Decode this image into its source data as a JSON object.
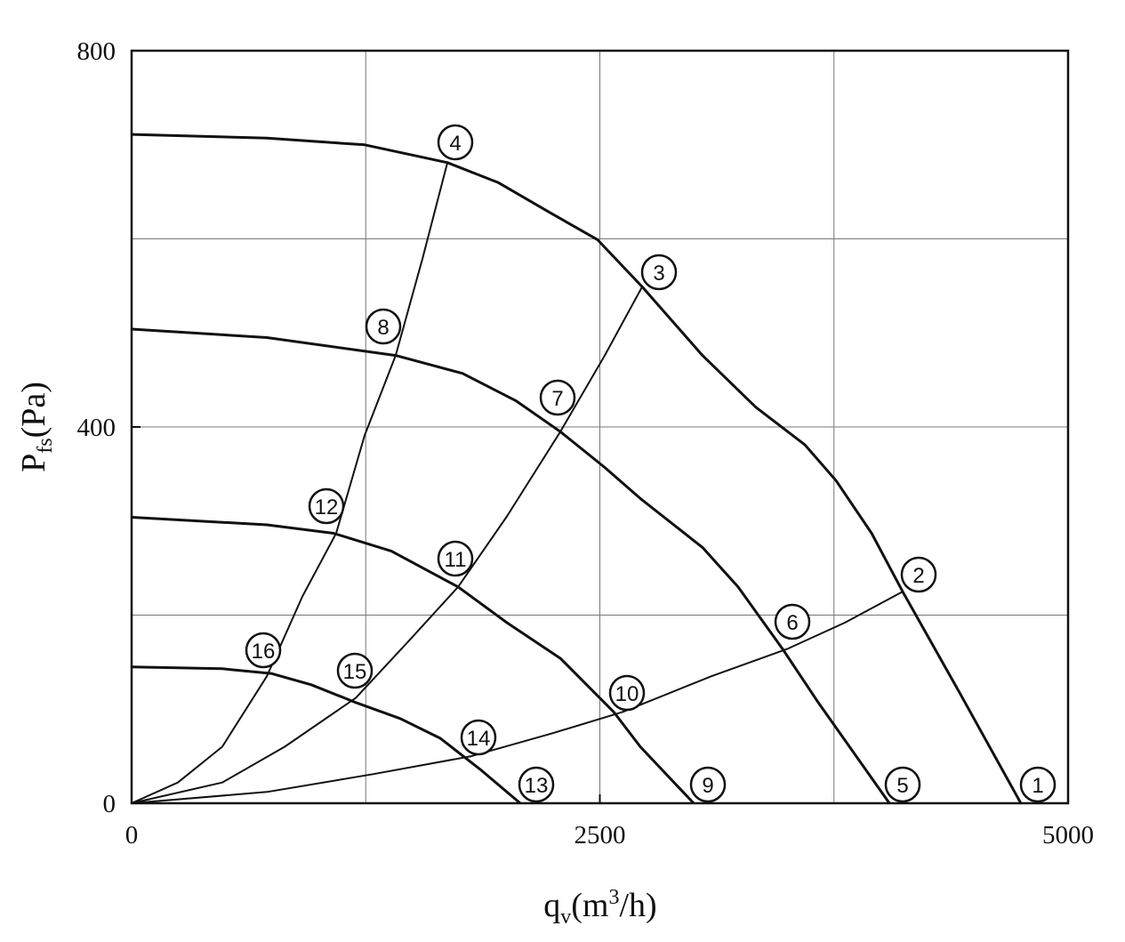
{
  "chart_data": {
    "type": "line",
    "xlabel": {
      "main": "q",
      "sub": "v",
      "unit_start": "(m",
      "sup": "3",
      "unit_end": "/h)"
    },
    "ylabel": {
      "main": "P",
      "sub": "fs",
      "unit": "(Pa)"
    },
    "xlim": [
      0,
      5000
    ],
    "ylim": [
      0,
      800
    ],
    "xticks": [
      0,
      2500,
      5000
    ],
    "yticks": [
      0,
      400,
      800
    ],
    "xgrid": [
      0,
      1250,
      2500,
      3750,
      5000
    ],
    "ygrid": [
      0,
      200,
      400,
      600,
      800
    ],
    "grid": true,
    "series": [
      {
        "color": "#111111",
        "x": [
          0,
          722,
          1244,
          1686,
          1956,
          2241,
          2488,
          2726,
          3048,
          3333,
          3595,
          3761,
          3951,
          4117,
          4425,
          4748
        ],
        "values": [
          711,
          707,
          700,
          681,
          660,
          627,
          599,
          549,
          476,
          421,
          381,
          343,
          287,
          225,
          116,
          0
        ]
      },
      {
        "color": "#111111",
        "x": [
          0,
          722,
          1410,
          1766,
          2051,
          2289,
          2526,
          2716,
          3048,
          3238,
          3476,
          3666,
          4046
        ],
        "values": [
          504,
          495,
          476,
          457,
          428,
          395,
          357,
          324,
          272,
          230,
          164,
          107,
          0
        ]
      },
      {
        "color": "#111111",
        "x": [
          0,
          722,
          1078,
          1387,
          1743,
          2004,
          2289,
          2574,
          2716,
          3001
        ],
        "values": [
          304,
          296,
          287,
          268,
          230,
          192,
          154,
          97,
          60,
          0
        ]
      },
      {
        "color": "#111111",
        "x": [
          0,
          484,
          745,
          959,
          1197,
          1434,
          1648,
          1861,
          2075
        ],
        "values": [
          145,
          143,
          138,
          126,
          107,
          90,
          69,
          36,
          0
        ]
      },
      {
        "color": "#111111",
        "x": [
          0,
          247,
          484,
          722,
          912,
          1092,
          1244,
          1410,
          1553,
          1686
        ],
        "values": [
          0,
          22,
          60,
          135,
          220,
          287,
          391,
          476,
          579,
          681
        ]
      },
      {
        "color": "#111111",
        "x": [
          0,
          484,
          817,
          1197,
          1482,
          1743,
          2004,
          2289,
          2526,
          2726
        ],
        "values": [
          0,
          22,
          60,
          112,
          173,
          230,
          305,
          395,
          476,
          549
        ]
      },
      {
        "color": "#111111",
        "x": [
          0,
          722,
          1292,
          1814,
          2241,
          2621,
          3096,
          3500,
          3808,
          4117
        ],
        "values": [
          0,
          12,
          31,
          50,
          74,
          97,
          135,
          164,
          192,
          225
        ]
      }
    ],
    "point_labels": [
      "1",
      "2",
      "3",
      "4",
      "5",
      "6",
      "7",
      "8",
      "9",
      "10",
      "11",
      "12",
      "13",
      "14",
      "15",
      "16"
    ]
  }
}
